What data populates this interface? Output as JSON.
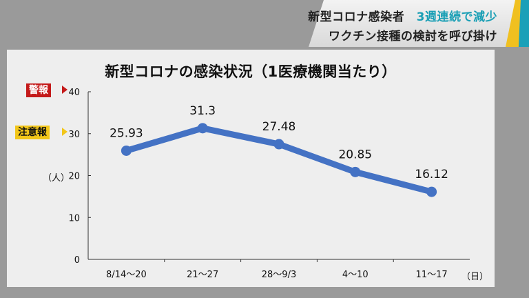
{
  "caption": {
    "line1_main": "新型コロナ感染者",
    "line1_accent": "3週連続で減少",
    "line2": "ワクチン接種の検討を呼び掛け"
  },
  "badges": {
    "warning": "警報",
    "caution": "注意報"
  },
  "units": {
    "y": "（人）",
    "x": "（日）"
  },
  "chart_data": {
    "type": "line",
    "title": "新型コロナの感染状況（1医療機関当たり）",
    "categories": [
      "8/14～20",
      "21～27",
      "28～9/3",
      "4～10",
      "11～17"
    ],
    "values": [
      25.93,
      31.3,
      27.48,
      20.85,
      16.12
    ],
    "value_labels": [
      "25.93",
      "31.3",
      "27.48",
      "20.85",
      "16.12"
    ],
    "ylim": [
      0,
      40
    ],
    "yticks": [
      "0",
      "10",
      "20",
      "30",
      "40"
    ],
    "grid": false,
    "line_color": "#4472c4",
    "warning_level": 40,
    "caution_level": 30
  }
}
